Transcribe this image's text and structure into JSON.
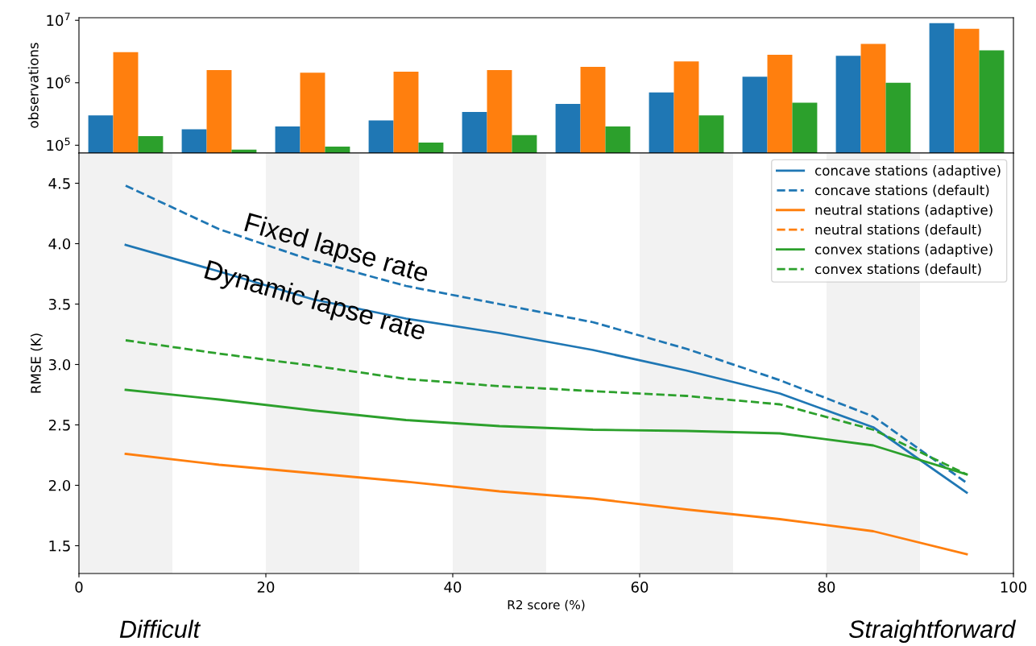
{
  "chart_data": [
    {
      "type": "bar",
      "ylabel": "observations",
      "log": "y",
      "categories": [
        null,
        null,
        null,
        null,
        null,
        null,
        null,
        null,
        null,
        null
      ],
      "series": [
        {
          "color": "#1f77b4",
          "values": [
            300000,
            180000,
            200000,
            250000,
            340000,
            460000,
            700000,
            1250000,
            2700000,
            9000000
          ]
        },
        {
          "color": "#ff7f0e",
          "values": [
            3100000,
            1600000,
            1450000,
            1500000,
            1600000,
            1800000,
            2200000,
            2800000,
            4200000,
            7300000
          ]
        },
        {
          "color": "#2ca02c",
          "values": [
            140000,
            85000,
            95000,
            110000,
            145000,
            200000,
            300000,
            480000,
            1000000,
            3300000
          ]
        }
      ],
      "ylim": [
        75000,
        11000000
      ],
      "yticks": [
        {
          "value": 100000,
          "label": "10$^{5}$"
        },
        {
          "value": 1000000,
          "label": "10$^{6}$"
        },
        {
          "value": 10000000,
          "label": "10$^{7}$"
        }
      ],
      "tick_labels": "y",
      "grid": false,
      "legend": false
    },
    {
      "type": "line",
      "xlabel": "R2 score (%)",
      "ylabel": "RMSE (K)",
      "x": [
        5,
        15,
        25,
        35,
        45,
        55,
        65,
        75,
        85,
        95
      ],
      "series": [
        {
          "name": "concave stations (adaptive)",
          "color": "#1f77b4",
          "line_style": "solid",
          "values": [
            3.99,
            3.77,
            3.54,
            3.38,
            3.26,
            3.12,
            2.95,
            2.76,
            2.48,
            1.94
          ]
        },
        {
          "name": "concave stations (default)",
          "color": "#1f77b4",
          "line_style": "dashed",
          "values": [
            4.48,
            4.12,
            3.86,
            3.65,
            3.5,
            3.35,
            3.13,
            2.87,
            2.57,
            2.02
          ]
        },
        {
          "name": "neutral stations (adaptive)",
          "color": "#ff7f0e",
          "line_style": "solid",
          "values": [
            2.26,
            2.17,
            2.1,
            2.03,
            1.95,
            1.89,
            1.8,
            1.72,
            1.62,
            1.43
          ]
        },
        {
          "name": "neutral stations (default)",
          "color": "#ff7f0e",
          "line_style": "dashed",
          "values": [
            null,
            null,
            null,
            null,
            null,
            null,
            null,
            null,
            null,
            null
          ]
        },
        {
          "name": "convex stations (adaptive)",
          "color": "#2ca02c",
          "line_style": "solid",
          "values": [
            2.79,
            2.71,
            2.62,
            2.54,
            2.49,
            2.46,
            2.45,
            2.43,
            2.33,
            2.09
          ]
        },
        {
          "name": "convex stations (default)",
          "color": "#2ca02c",
          "line_style": "dashed",
          "values": [
            3.2,
            3.09,
            2.99,
            2.88,
            2.82,
            2.78,
            2.74,
            2.67,
            2.46,
            2.09
          ]
        }
      ],
      "xlim": [
        0,
        100
      ],
      "xticks": [
        0,
        20,
        40,
        60,
        80,
        100
      ],
      "ylim": [
        1.27,
        4.75
      ],
      "yticks": [
        1.5,
        {
          "value": 2,
          "label": "2.0"
        },
        2.5,
        {
          "value": 3,
          "label": "3.0"
        },
        3.5,
        {
          "value": 4,
          "label": "4.0"
        },
        4.5
      ],
      "bands": [
        {
          "axis": "x",
          "from": 0,
          "to": 10,
          "color": "#f2f2f2"
        },
        {
          "axis": "x",
          "from": 20,
          "to": 30,
          "color": "#f2f2f2"
        },
        {
          "axis": "x",
          "from": 40,
          "to": 50,
          "color": "#f2f2f2"
        },
        {
          "axis": "x",
          "from": 60,
          "to": 70,
          "color": "#f2f2f2"
        },
        {
          "axis": "x",
          "from": 80,
          "to": 90,
          "color": "#f2f2f2"
        }
      ],
      "annotations": [
        "Fixed lapse rate",
        "Dynamic lapse rate",
        "Difficult",
        "Straightforward"
      ],
      "grid": false,
      "legend": "top right"
    }
  ]
}
